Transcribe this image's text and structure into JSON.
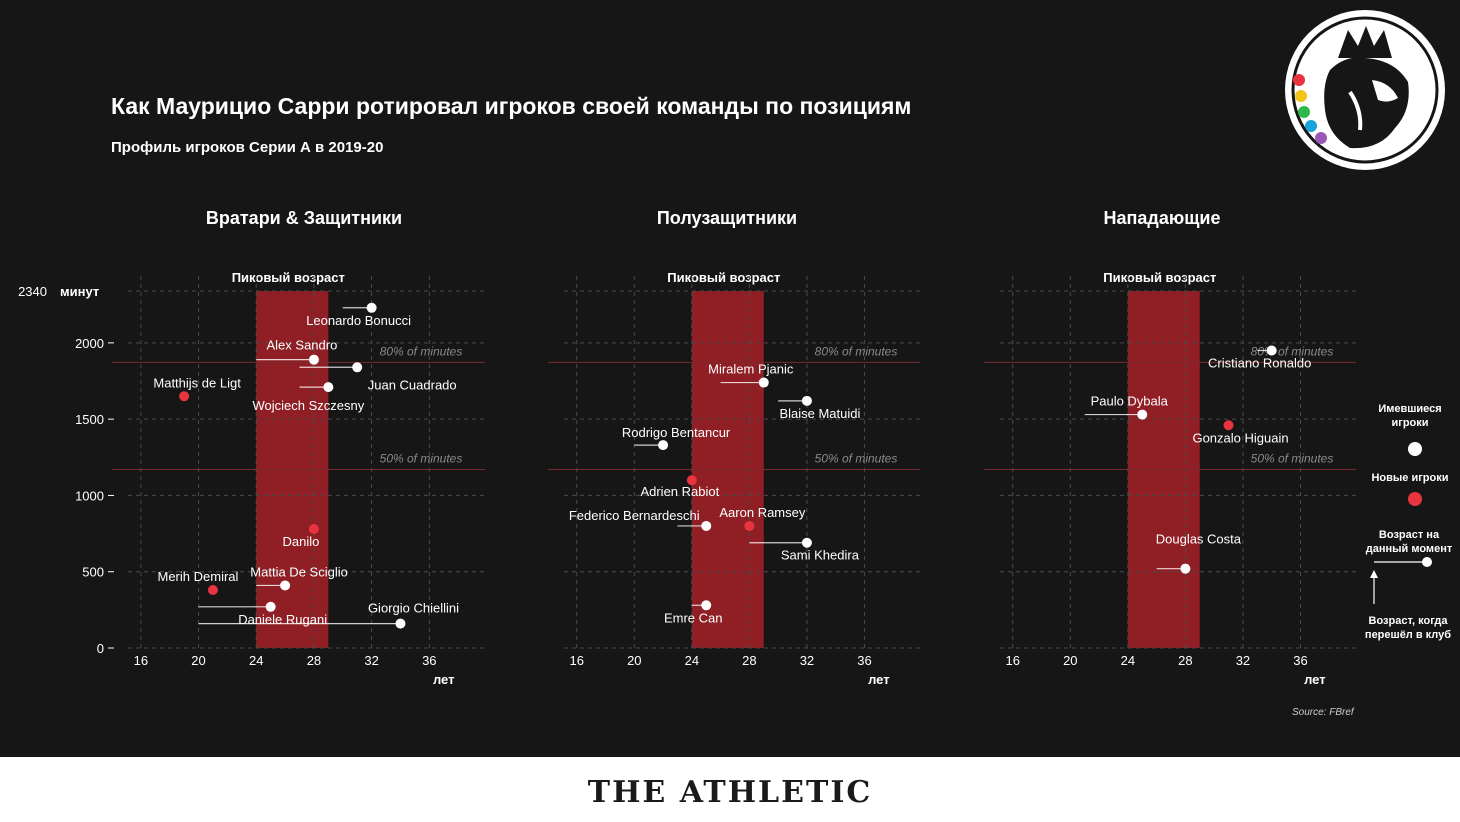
{
  "title": "Как Маурицио Сарри ротировал игроков своей команды по позициям",
  "subtitle": "Профиль игроков Серии А в 2019-20",
  "brand": "THE ATHLETIC",
  "source": "Source: FBref",
  "peak_label": "Пиковый возраст",
  "ref_80_label": "80% of minutes",
  "ref_50_label": "50% of minutes",
  "y_max_label": "2340",
  "y_unit_label": "минут",
  "x_unit_label": "лет",
  "legend": {
    "existing": "Имевшиеся игроки",
    "new": "Новые игроки",
    "current_age": "Возраст на данный момент",
    "join_age": "Возраст, когда перешёл в клуб"
  },
  "colors": {
    "background": "#161616",
    "peak_band": "#8f1f25",
    "new_player": "#e8343f",
    "existing_player": "#ffffff",
    "reference_line": "#7a2a2e"
  },
  "chart_data": [
    {
      "type": "scatter",
      "title": "Вратари & Защитники",
      "xlabel": "лет",
      "ylabel": "минут",
      "xlim": [
        14,
        40
      ],
      "ylim": [
        0,
        2340
      ],
      "xticks": [
        16,
        20,
        24,
        28,
        32,
        36
      ],
      "yticks": [
        0,
        500,
        1000,
        1500,
        2000
      ],
      "peak_age": [
        24,
        29
      ],
      "reference_lines": [
        {
          "label": "80% of minutes",
          "y": 1872
        },
        {
          "label": "50% of minutes",
          "y": 1170
        }
      ],
      "players": [
        {
          "name": "Leonardo Bonucci",
          "age": 32,
          "joined_age": 30,
          "minutes": 2230,
          "new": false
        },
        {
          "name": "Alex Sandro",
          "age": 28,
          "joined_age": 24,
          "minutes": 1890,
          "new": false
        },
        {
          "name": "Juan Cuadrado",
          "age": 31,
          "joined_age": 27,
          "minutes": 1840,
          "new": false
        },
        {
          "name": "Wojciech Szczesny",
          "age": 29,
          "joined_age": 27,
          "minutes": 1710,
          "new": false
        },
        {
          "name": "Matthijs de Ligt",
          "age": 19,
          "minutes": 1650,
          "new": true
        },
        {
          "name": "Danilo",
          "age": 28,
          "minutes": 780,
          "new": true
        },
        {
          "name": "Mattia De Sciglio",
          "age": 26,
          "joined_age": 24,
          "minutes": 410,
          "new": false
        },
        {
          "name": "Merih Demiral",
          "age": 21,
          "minutes": 380,
          "new": true
        },
        {
          "name": "Daniele Rugani",
          "age": 25,
          "joined_age": 20,
          "minutes": 270,
          "new": false
        },
        {
          "name": "Giorgio Chiellini",
          "age": 34,
          "joined_age": 20,
          "minutes": 160,
          "new": false
        }
      ]
    },
    {
      "type": "scatter",
      "title": "Полузащитники",
      "xlabel": "лет",
      "ylabel": "минут",
      "xlim": [
        14,
        40
      ],
      "ylim": [
        0,
        2340
      ],
      "xticks": [
        16,
        20,
        24,
        28,
        32,
        36
      ],
      "yticks": [
        0,
        500,
        1000,
        1500,
        2000
      ],
      "peak_age": [
        24,
        29
      ],
      "reference_lines": [
        {
          "label": "80% of minutes",
          "y": 1872
        },
        {
          "label": "50% of minutes",
          "y": 1170
        }
      ],
      "players": [
        {
          "name": "Miralem Pjanic",
          "age": 29,
          "joined_age": 26,
          "minutes": 1740,
          "new": false
        },
        {
          "name": "Blaise Matuidi",
          "age": 32,
          "joined_age": 30,
          "minutes": 1620,
          "new": false
        },
        {
          "name": "Rodrigo Bentancur",
          "age": 22,
          "joined_age": 20,
          "minutes": 1330,
          "new": false
        },
        {
          "name": "Adrien Rabiot",
          "age": 24,
          "minutes": 1100,
          "new": true
        },
        {
          "name": "Federico Bernardeschi",
          "age": 25,
          "joined_age": 23,
          "minutes": 800,
          "new": false
        },
        {
          "name": "Aaron Ramsey",
          "age": 28,
          "minutes": 800,
          "new": true
        },
        {
          "name": "Sami Khedira",
          "age": 32,
          "joined_age": 28,
          "minutes": 690,
          "new": false
        },
        {
          "name": "Emre Can",
          "age": 25,
          "joined_age": 24,
          "minutes": 280,
          "new": false
        }
      ]
    },
    {
      "type": "scatter",
      "title": "Нападающие",
      "xlabel": "лет",
      "ylabel": "минут",
      "xlim": [
        14,
        40
      ],
      "ylim": [
        0,
        2340
      ],
      "xticks": [
        16,
        20,
        24,
        28,
        32,
        36
      ],
      "yticks": [
        0,
        500,
        1000,
        1500,
        2000
      ],
      "peak_age": [
        24,
        29
      ],
      "reference_lines": [
        {
          "label": "80% of minutes",
          "y": 1872
        },
        {
          "label": "50% of minutes",
          "y": 1170
        }
      ],
      "players": [
        {
          "name": "Cristiano Ronaldo",
          "age": 34,
          "joined_age": 33,
          "minutes": 1950,
          "new": false
        },
        {
          "name": "Paulo Dybala",
          "age": 25,
          "joined_age": 21,
          "minutes": 1530,
          "new": false
        },
        {
          "name": "Gonzalo Higuain",
          "age": 31,
          "minutes": 1460,
          "new": true
        },
        {
          "name": "Douglas Costa",
          "age": 28,
          "joined_age": 26,
          "minutes": 520,
          "new": false
        }
      ]
    }
  ]
}
